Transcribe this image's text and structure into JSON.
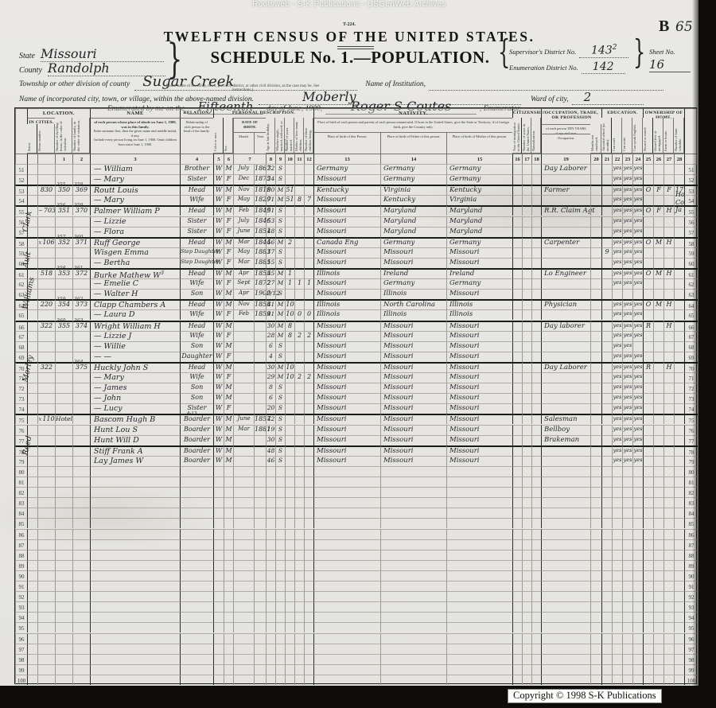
{
  "scan": {
    "watermark": "Rootsweb - S-K Publications - USGenWeb Archives",
    "copyright": "Copyright © 1998 S-K Publications",
    "form_code": "T-224.",
    "corner_letter": "B",
    "corner_number": "65",
    "marginalia": "Ho Co Ja"
  },
  "header": {
    "title": "TWELFTH CENSUS OF THE UNITED STATES.",
    "schedule": "SCHEDULE No. 1.—POPULATION.",
    "state_label": "State",
    "state": "Missouri",
    "county_label": "County",
    "county": "Randolph",
    "supervisor_label": "Supervisor's District No.",
    "supervisor": "143",
    "supervisor_sup": "2",
    "enumeration_label": "Enumeration District No.",
    "enumeration": "142",
    "sheet_label": "Sheet No.",
    "sheet": "16",
    "township_label": "Township or other division of county",
    "township": "Sugar Creek",
    "township_note": "(Insert name of township, town, precinct, district, or other civil division, as the case may be. See instructions.)",
    "institution_label": "Name of Institution,",
    "city_label": "Name of incorporated city, town, or village, within the above-named division.",
    "city": "Moberly",
    "ward_label": "Ward of city,",
    "ward": "2",
    "enumerated_pre": "Enumerated by me on the",
    "enumerated_day": "Fifteenth",
    "enumerated_mid": "day of June, 1900,",
    "enumerator_name": "Roger S Coutes",
    "enumerated_post": ", Enumerator."
  },
  "table": {
    "header": {
      "location": "LOCATION.",
      "in_cities": "IN CITIES.",
      "street": "Street.",
      "house": "House number.",
      "dwelling": "Number of dwelling house, in the order of visitation.",
      "family": "Number of family, in the order of visitation.",
      "name": "NAME",
      "name_desc1": "of each person whose place of abode on June 1, 1900, was in this family.",
      "name_desc2": "Enter surname first, then the given name and middle initial, if any.",
      "name_desc3": "Include every person living on June 1, 1900. Omit children born since June 1, 1900.",
      "relation": "RELATION.",
      "relation_desc": "Relationship of each person to the head of the family.",
      "personal": "PERSONAL DESCRIPTION.",
      "color": "Color or race.",
      "sex": "Sex.",
      "dob": "DATE OF BIRTH.",
      "month": "Month.",
      "year": "Year.",
      "age": "Age at last birthday.",
      "marital": "Whether single, married, widowed, or divorced.",
      "yrs_married": "Number of years married.",
      "mother_of": "Mother of how many children.",
      "children_living": "Number of these children living.",
      "nativity": "NATIVITY.",
      "nativity_desc": "Place of birth of each person and parents of each person enumerated. If born in the United States, give the State or Territory; if of foreign birth, give the Country only.",
      "pob": "Place of birth of this Person.",
      "pob_father": "Place of birth of Father of this person.",
      "pob_mother": "Place of birth of Mother of this person.",
      "citizenship": "CITIZENSHIP.",
      "immigration": "Year of immigration to the United States.",
      "years_in_us": "Number of years in the United States.",
      "naturalization": "Naturalization.",
      "occupation_group": "OCCUPATION, TRADE, OR PROFESSION",
      "occupation_desc": "of each person TEN YEARS of age and over.",
      "occupation": "Occupation.",
      "months_unemployed": "Months not employed.",
      "education": "EDUCATION.",
      "attended": "Attended school (in months).",
      "can_read": "Can read.",
      "can_write": "Can write.",
      "can_english": "Can speak English.",
      "ownership": "OWNERSHIP OF HOME.",
      "owned_rented": "Owned or rented.",
      "free_mortgaged": "Owned free or mortgaged.",
      "farm_house": "Farm or house.",
      "farm_schedule": "Number of farm schedule."
    },
    "col_numbers": {
      "dw": "1",
      "fam": "2",
      "name": "3",
      "rel": "4",
      "color": "5",
      "sex": "6",
      "dob": "7",
      "age": "8",
      "mar": "9",
      "ym": "10",
      "mc": "11",
      "cl": "12",
      "pob": "13",
      "fpob": "14",
      "mpob": "15",
      "imm": "16",
      "yus": "17",
      "nat": "18",
      "occ": "19",
      "mne": "20",
      "sch": "21",
      "rd": "22",
      "wr": "23",
      "en": "24",
      "own": "25",
      "fm": "26",
      "fh": "27",
      "fs": "28"
    },
    "streets": [
      {
        "name": "Clark",
        "start": 54,
        "end": 57
      },
      {
        "name": "Ault",
        "start": 58,
        "end": 60
      },
      {
        "name": "Williams",
        "start": 61,
        "end": 65
      },
      {
        "name": "Morley",
        "start": 66,
        "end": 74
      },
      {
        "name": "Reed",
        "start": 75,
        "end": 79
      }
    ],
    "rows": [
      {
        "n": 51,
        "name": "— William",
        "rel": "Brother",
        "color": "W",
        "sex": "M",
        "bm": "July",
        "by": "1867",
        "age": "32",
        "mar": "S",
        "pob": "Germany",
        "fpob": "Germany",
        "mpob": "Germany",
        "occ": "Day Laborer",
        "rd": "yes",
        "wr": "yes",
        "en": "yes"
      },
      {
        "n": 52,
        "name": "— Mary",
        "rel": "Sister",
        "color": "W",
        "sex": "F",
        "bm": "Dec",
        "by": "1875",
        "age": "24",
        "mar": "S",
        "pob": "Missouri",
        "fpob": "Germany",
        "mpob": "Germany",
        "rd": "yes",
        "wr": "yes",
        "en": "yes"
      },
      {
        "n": 53,
        "heavy": true,
        "house": "830",
        "dw": "350",
        "dwc": "355",
        "fam": "369",
        "famc": "358",
        "name": "Routt Louis",
        "rel": "Head",
        "color": "W",
        "sex": "M",
        "bm": "Nov",
        "by": "1819",
        "age": "80",
        "mar": "M",
        "ym": "51",
        "pob": "Kentucky",
        "fpob": "Virginia",
        "mpob": "Kentucky",
        "occ": "Farmer",
        "rd": "yes",
        "wr": "yes",
        "en": "yes",
        "own": "O",
        "fm": "F",
        "fh": "F",
        "fs": "17"
      },
      {
        "n": 54,
        "name": "— Mary",
        "rel": "Wife",
        "color": "W",
        "sex": "F",
        "bm": "May",
        "by": "1829",
        "age": "71",
        "mar": "M",
        "ym": "51",
        "mc": "8",
        "cl": "7",
        "pob": "Missouri",
        "fpob": "Kentucky",
        "mpob": "Virginia",
        "rd": "yes",
        "wr": "yes",
        "en": "yes"
      },
      {
        "n": 55,
        "heavy": true,
        "pre": "~",
        "house": "703",
        "dw": "351",
        "dwc": "356",
        "fam": "370",
        "famc": "359",
        "name": "Palmer William P",
        "rel": "Head",
        "color": "W",
        "sex": "M",
        "bm": "Feb",
        "by": "1849",
        "age": "51",
        "mar": "S",
        "pob": "Missouri",
        "fpob": "Maryland",
        "mpob": "Maryland",
        "occ": "R.R. Claim Agt",
        "rd": "yes",
        "wr": "yes",
        "en": "yes",
        "own": "O",
        "fm": "F",
        "fh": "H"
      },
      {
        "n": 56,
        "name": "— Lizzie",
        "rel": "Sister",
        "color": "W",
        "sex": "F",
        "bm": "July",
        "by": "1846",
        "age": "53",
        "mar": "S",
        "pob": "Missouri",
        "fpob": "Maryland",
        "mpob": "Maryland",
        "rd": "yes",
        "wr": "yes",
        "en": "yes"
      },
      {
        "n": 57,
        "name": "— Flora",
        "rel": "Sister",
        "color": "W",
        "sex": "F",
        "bm": "June",
        "by": "1851",
        "age": "48",
        "mar": "S",
        "pob": "Missouri",
        "fpob": "Maryland",
        "mpob": "Maryland",
        "rd": "yes",
        "wr": "yes",
        "en": "yes"
      },
      {
        "n": 58,
        "heavy": true,
        "pre": "x",
        "house": "106",
        "dw": "352",
        "dwc": "357",
        "fam": "371",
        "famc": "360",
        "name": "Ruff George",
        "rel": "Head",
        "color": "W",
        "sex": "M",
        "bm": "Mar",
        "by": "1844",
        "age": "56",
        "mar": "M",
        "ym": "2",
        "pob": "Canada Eng",
        "fpob": "Germany",
        "mpob": "Germany",
        "occ": "Carpenter",
        "rd": "yes",
        "wr": "yes",
        "en": "yes",
        "own": "O",
        "fm": "M",
        "fh": "H"
      },
      {
        "n": 59,
        "name": "Wisgen Emma",
        "rel": "Step Daughter",
        "color": "W",
        "sex": "F",
        "bm": "May",
        "by": "1883",
        "age": "17",
        "mar": "S",
        "pob": "Missouri",
        "fpob": "Missouri",
        "mpob": "Missouri",
        "sch": "9",
        "rd": "yes",
        "wr": "yes",
        "en": "yes"
      },
      {
        "n": 60,
        "name": "— Bertha",
        "rel": "Step Daughter",
        "color": "W",
        "sex": "F",
        "bm": "Mar",
        "by": "1885",
        "age": "15",
        "mar": "S",
        "pob": "Missouri",
        "fpob": "Missouri",
        "mpob": "Missouri",
        "rd": "yes",
        "wr": "yes",
        "en": "yes"
      },
      {
        "n": 61,
        "heavy": true,
        "house": "518",
        "dw": "353",
        "dwc": "358",
        "fam": "372",
        "famc": "361",
        "name": "Burke Mathew W",
        "namesup": "3",
        "rel": "Head",
        "color": "W",
        "sex": "M",
        "bm": "Apr",
        "by": "1855",
        "age": "45",
        "mar": "M",
        "ym": "1",
        "pob": "Illinois",
        "fpob": "Ireland",
        "mpob": "Ireland",
        "occ": "Lo Engineer",
        "rd": "yes",
        "wr": "yes",
        "en": "yes",
        "own": "O",
        "fm": "M",
        "fh": "H"
      },
      {
        "n": 62,
        "name": "— Emelie C",
        "rel": "Wife",
        "color": "W",
        "sex": "F",
        "bm": "Sept",
        "by": "1872",
        "age": "27",
        "mar": "M",
        "ym": "1",
        "mc": "1",
        "cl": "1",
        "pob": "Missouri",
        "fpob": "Germany",
        "mpob": "Germany",
        "rd": "yes",
        "wr": "yes",
        "en": "yes"
      },
      {
        "n": 63,
        "name": "— Walter H",
        "rel": "Son",
        "color": "W",
        "sex": "M",
        "bm": "Apr",
        "by": "1900",
        "age": "2/12",
        "mar": "S",
        "pob": "Missouri",
        "fpob": "Illinois",
        "mpob": "Missouri"
      },
      {
        "n": 64,
        "heavy": true,
        "house": "220",
        "dw": "354",
        "dwc": "359",
        "fam": "373",
        "famc": "362",
        "name": "Clapp Chambers A",
        "rel": "Head",
        "color": "W",
        "sex": "M",
        "bm": "Nov",
        "by": "1858",
        "age": "41",
        "mar": "M",
        "ym": "10",
        "pob": "Illinois",
        "fpob": "North Carolina",
        "mpob": "Illinois",
        "occ": "Physician",
        "rd": "yes",
        "wr": "yes",
        "en": "yes",
        "own": "O",
        "fm": "M",
        "fh": "H"
      },
      {
        "n": 65,
        "name": "— Laura D",
        "rel": "Wife",
        "color": "W",
        "sex": "F",
        "bm": "Feb",
        "by": "1859",
        "age": "41",
        "mar": "M",
        "ym": "10",
        "mc": "0",
        "cl": "0",
        "pob": "Illinois",
        "fpob": "Illinois",
        "mpob": "Illinois",
        "rd": "yes",
        "wr": "yes",
        "en": "yes"
      },
      {
        "n": 66,
        "heavy": true,
        "house": "322",
        "dw": "355",
        "dwc": "360",
        "fam": "374",
        "famc": "363",
        "name": "Wright William H",
        "rel": "Head",
        "color": "W",
        "sex": "M",
        "age": "30",
        "mar": "M",
        "ym": "8",
        "pob": "Missouri",
        "fpob": "Missouri",
        "mpob": "Missouri",
        "occ": "Day laborer",
        "rd": "yes",
        "wr": "yes",
        "en": "yes",
        "own": "R",
        "fh": "H"
      },
      {
        "n": 67,
        "name": "— Lizzie J",
        "rel": "Wife",
        "color": "W",
        "sex": "F",
        "age": "28",
        "mar": "M",
        "ym": "8",
        "mc": "2",
        "cl": "2",
        "pob": "Missouri",
        "fpob": "Missouri",
        "mpob": "Missouri",
        "rd": "yes",
        "wr": "yes",
        "en": "yes"
      },
      {
        "n": 68,
        "name": "— Willie",
        "rel": "Son",
        "color": "W",
        "sex": "M",
        "age": "6",
        "mar": "S",
        "pob": "Missouri",
        "fpob": "Missouri",
        "mpob": "Missouri",
        "rd": "yes",
        "wr": "yes"
      },
      {
        "n": 69,
        "name": "— —",
        "rel": "Daughter",
        "color": "W",
        "sex": "F",
        "age": "4",
        "mar": "S",
        "pob": "Missouri",
        "fpob": "Missouri",
        "mpob": "Missouri",
        "rd": "yes",
        "wr": "yes",
        "en": "yes"
      },
      {
        "n": 70,
        "heavy": true,
        "house": "322",
        "fam": "375",
        "famc": "364",
        "name": "Huckly John S",
        "rel": "Head",
        "color": "W",
        "sex": "M",
        "age": "30",
        "mar": "M",
        "ym": "10",
        "pob": "Missouri",
        "fpob": "Missouri",
        "mpob": "Missouri",
        "occ": "Day Laborer",
        "rd": "yes",
        "wr": "yes",
        "en": "yes",
        "own": "R",
        "fh": "H"
      },
      {
        "n": 71,
        "name": "— Mary",
        "rel": "Wife",
        "color": "W",
        "sex": "F",
        "age": "29",
        "mar": "M",
        "ym": "10",
        "mc": "2",
        "cl": "2",
        "pob": "Missouri",
        "fpob": "Missouri",
        "mpob": "Missouri",
        "rd": "yes",
        "wr": "yes",
        "en": "yes"
      },
      {
        "n": 72,
        "name": "— James",
        "rel": "Son",
        "color": "W",
        "sex": "M",
        "age": "8",
        "mar": "S",
        "pob": "Missouri",
        "fpob": "Missouri",
        "mpob": "Missouri",
        "rd": "yes",
        "wr": "yes",
        "en": "yes"
      },
      {
        "n": 73,
        "name": "— John",
        "rel": "Son",
        "color": "W",
        "sex": "M",
        "age": "6",
        "mar": "S",
        "pob": "Missouri",
        "fpob": "Missouri",
        "mpob": "Missouri",
        "rd": "yes",
        "wr": "yes",
        "en": "yes"
      },
      {
        "n": 74,
        "name": "— Lucy",
        "rel": "Sister",
        "color": "W",
        "sex": "F",
        "age": "20",
        "mar": "S",
        "pob": "Missouri",
        "fpob": "Missouri",
        "mpob": "Missouri",
        "rd": "yes",
        "wr": "yes",
        "en": "yes"
      },
      {
        "n": 75,
        "heavy": true,
        "pre": "x",
        "house": "110",
        "dwword": "Hotel",
        "name": "Bascom Hugh B",
        "rel": "Boarder",
        "relnote": "4-13",
        "color": "W",
        "sex": "M",
        "bm": "June",
        "by": "1857",
        "age": "42",
        "mar": "S",
        "pob": "Missouri",
        "fpob": "Missouri",
        "mpob": "Missouri",
        "occ": "Salesman",
        "rd": "yes",
        "wr": "yes",
        "en": "yes"
      },
      {
        "n": 76,
        "name": "Hunt Lou S",
        "rel": "Boarder",
        "color": "W",
        "sex": "M",
        "bm": "Mar",
        "by": "1881",
        "age": "19",
        "mar": "S",
        "pob": "Missouri",
        "fpob": "Missouri",
        "mpob": "Missouri",
        "occ": "Bellboy",
        "rd": "yes",
        "wr": "yes",
        "en": "yes"
      },
      {
        "n": 77,
        "name": "Hunt Will D",
        "rel": "Boarder",
        "color": "W",
        "sex": "M",
        "age": "30",
        "mar": "S",
        "pob": "Missouri",
        "fpob": "Missouri",
        "mpob": "Missouri",
        "occ": "Brakeman",
        "rd": "yes",
        "wr": "yes",
        "en": "yes"
      },
      {
        "n": 78,
        "heavy": true,
        "name": "Stiff Frank A",
        "rel": "Boarder",
        "color": "W",
        "sex": "M",
        "age": "48",
        "mar": "S",
        "pob": "Missouri",
        "fpob": "Missouri",
        "mpob": "Missouri",
        "rd": "yes",
        "wr": "yes",
        "en": "yes"
      },
      {
        "n": 79,
        "name": "Lay James W",
        "rel": "Boarder",
        "color": "W",
        "sex": "M",
        "age": "46",
        "mar": "S",
        "pob": "Missouri",
        "fpob": "Missouri",
        "mpob": "Missouri",
        "rd": "yes",
        "wr": "yes",
        "en": "yes"
      },
      {
        "n": 80
      },
      {
        "n": 81
      },
      {
        "n": 82
      },
      {
        "n": 83
      },
      {
        "n": 84
      },
      {
        "n": 85
      },
      {
        "n": 86
      },
      {
        "n": 87
      },
      {
        "n": 88
      },
      {
        "n": 89
      },
      {
        "n": 90
      },
      {
        "n": 91
      },
      {
        "n": 92
      },
      {
        "n": 93
      },
      {
        "n": 94
      },
      {
        "n": 95
      },
      {
        "n": 96
      },
      {
        "n": 97
      },
      {
        "n": 98
      },
      {
        "n": 99
      },
      {
        "n": 100
      }
    ]
  }
}
